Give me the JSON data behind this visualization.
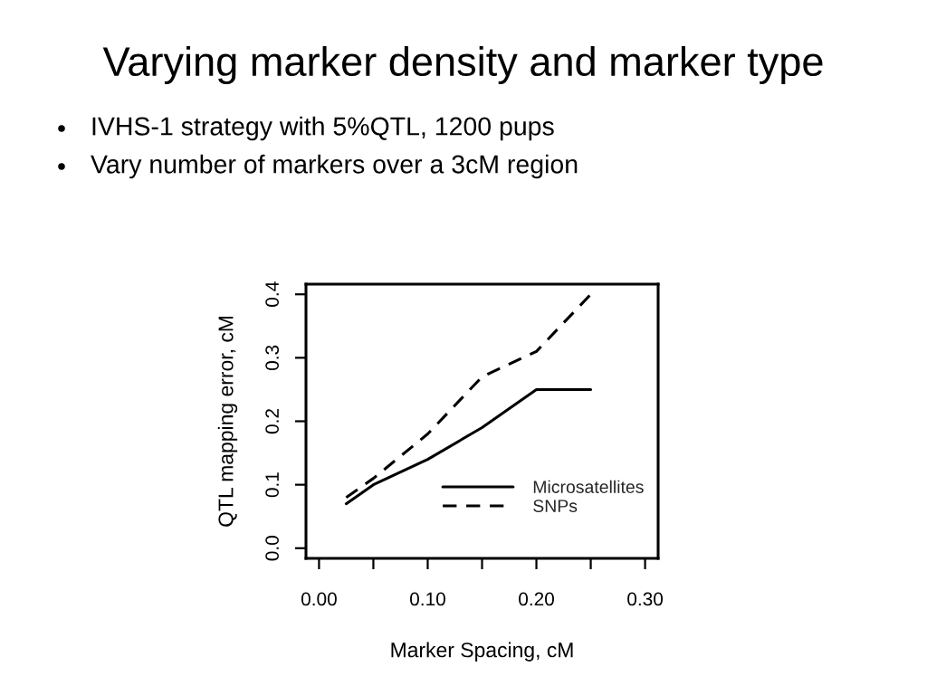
{
  "chart_data": {
    "type": "line",
    "title": "Varying marker density and marker type",
    "annotations": [
      "IVHS-1 strategy with 5%QTL, 1200 pups",
      "Vary number of markers over a 3cM region"
    ],
    "xlabel": "Marker Spacing, cM",
    "ylabel": "QTL mapping error, cM",
    "x": [
      0.025,
      0.05,
      0.1,
      0.15,
      0.2,
      0.25
    ],
    "series": [
      {
        "name": "Microsatellites",
        "color": "#000000",
        "line_style": "solid",
        "values": [
          0.07,
          0.1,
          0.14,
          0.19,
          0.25,
          0.25
        ]
      },
      {
        "name": "SNPs",
        "color": "#000000",
        "line_style": "dashed",
        "values": [
          0.08,
          0.11,
          0.18,
          0.27,
          0.31,
          0.4
        ]
      }
    ],
    "xlim": [
      -0.012,
      0.312
    ],
    "xticks": [
      {
        "value": 0,
        "label": "0.00"
      },
      {
        "value": 0.05,
        "label": null
      },
      {
        "value": 0.1,
        "label": "0.10"
      },
      {
        "value": 0.15,
        "label": null
      },
      {
        "value": 0.2,
        "label": "0.20"
      },
      {
        "value": 0.25,
        "label": null
      },
      {
        "value": 0.3,
        "label": "0.30"
      }
    ],
    "ylim": [
      -0.016,
      0.416
    ],
    "yticks": [
      {
        "value": 0,
        "label": "0.0"
      },
      {
        "value": 0.1,
        "label": "0.1"
      },
      {
        "value": 0.2,
        "label": "0.2"
      },
      {
        "value": 0.3,
        "label": "0.3"
      },
      {
        "value": 0.4,
        "label": "0.4"
      }
    ],
    "legend": "bottom right"
  }
}
